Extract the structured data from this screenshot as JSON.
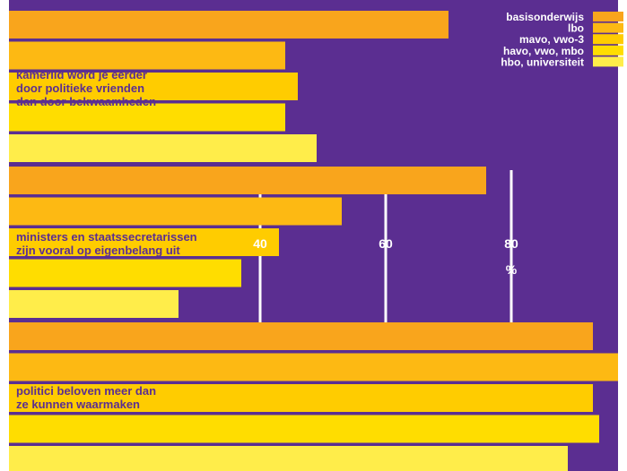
{
  "chart_data": {
    "type": "bar",
    "orientation": "horizontal",
    "unit_label": "%",
    "xlim": [
      0,
      100
    ],
    "ticks": [
      40,
      60,
      80
    ],
    "grid": true,
    "legend_position": "top-right",
    "categories": [
      "kamerlid word je eerder door politieke vrienden dan door bekwaamheden",
      "ministers en staatssecretarissen zijn vooral op eigenbelang uit",
      "politici beloven meer dan ze kunnen waarmaken"
    ],
    "category_lines": [
      [
        "kamerlid word je eerder",
        "door politieke vrienden",
        "dan door bekwaamheden"
      ],
      [
        "ministers en staatssecretarissen",
        "zijn vooral op eigenbelang uit"
      ],
      [
        "politici beloven meer dan",
        "ze kunnen waarmaken"
      ]
    ],
    "series": [
      {
        "name": "basisonderwijs",
        "color": "#F9A51C",
        "values": [
          70,
          76,
          93
        ]
      },
      {
        "name": "lbo",
        "color": "#FDB913",
        "values": [
          44,
          53,
          97
        ]
      },
      {
        "name": "mavo, vwo-3",
        "color": "#FFCC00",
        "values": [
          46,
          43,
          93
        ]
      },
      {
        "name": "havo, vwo, mbo",
        "color": "#FFDD00",
        "values": [
          44,
          37,
          94
        ]
      },
      {
        "name": "hbo, universiteit",
        "color": "#FFED4A",
        "values": [
          49,
          27,
          89
        ]
      }
    ],
    "colors": {
      "background": "#5B2E91",
      "label_text": "#5B2E91",
      "axis_text": "#FFFFFF"
    }
  }
}
